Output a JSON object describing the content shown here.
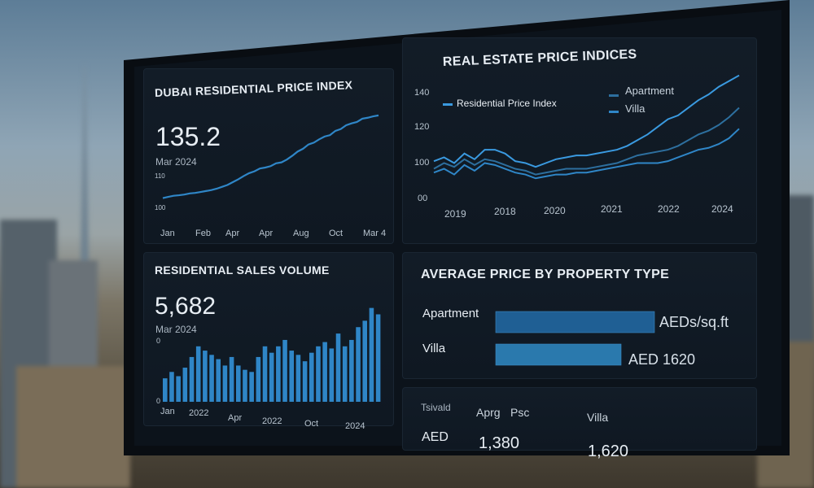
{
  "panels": {
    "price_index": {
      "title": "DUBAI RESIDENTIAL PRICE INDEX",
      "value": "135.2",
      "date": "Mar 2024",
      "y_ticks": [
        "110",
        "100"
      ],
      "x_ticks": [
        "Jan",
        "Feb",
        "Apr",
        "Apr",
        "Aug",
        "Oct",
        "Mar 4"
      ]
    },
    "indices": {
      "title": "REAL ESTATE PRICE INDICES",
      "legend": [
        "Residential Price Index",
        "Apartment",
        "Villa"
      ],
      "y_ticks": [
        "140",
        "120",
        "100",
        "00"
      ],
      "x_ticks": [
        "2019",
        "2018",
        "2020",
        "2021",
        "2022",
        "2024"
      ]
    },
    "sales": {
      "title": "RESIDENTIAL SALES VOLUME",
      "value": "5,682",
      "date": "Mar 2024",
      "y_ticks": [
        "0",
        "0"
      ],
      "x_ticks": [
        "Jan",
        "2022",
        "Apr",
        "2022",
        "Oct",
        "2024"
      ]
    },
    "avg_price": {
      "title": "AVERAGE PRICE BY PROPERTY TYPE",
      "rows": [
        {
          "label": "Apartment",
          "value_text": "AEDs/sq.ft"
        },
        {
          "label": "Villa",
          "value_text": "AED 1620"
        }
      ]
    },
    "table": {
      "headers": [
        "Tsivald",
        "Aprg",
        "Psc",
        "Villa"
      ],
      "row": [
        "AED",
        "1,380",
        "1,620"
      ]
    }
  },
  "chart_data": [
    {
      "type": "line",
      "title": "DUBAI RESIDENTIAL PRICE INDEX",
      "x": [
        0,
        1,
        2,
        3,
        4,
        5,
        6,
        7,
        8,
        9,
        10,
        11,
        12,
        13,
        14,
        15,
        16,
        17,
        18,
        19,
        20,
        21,
        22,
        23,
        24,
        25,
        26,
        27,
        28,
        29,
        30,
        31,
        32,
        33,
        34,
        35,
        36,
        37,
        38,
        39,
        40
      ],
      "series": [
        {
          "values": [
            100,
            100.5,
            101,
            101.2,
            101.5,
            102,
            102.2,
            102.6,
            103,
            103.4,
            104,
            104.8,
            105.6,
            106.8,
            108,
            109.4,
            110.6,
            111.4,
            112.6,
            113,
            113.6,
            114.8,
            115.2,
            116.4,
            118,
            119.8,
            121,
            122.8,
            123.6,
            125,
            126.2,
            126.8,
            128.6,
            129.4,
            131,
            131.8,
            132.4,
            133.8,
            134.2,
            134.8,
            135.2
          ]
        }
      ],
      "color": "#2f86c7"
    },
    {
      "type": "line",
      "title": "REAL ESTATE PRICE INDICES",
      "x_ticks": [
        "2019",
        "2018",
        "2020",
        "2021",
        "2022",
        "2024"
      ],
      "series": [
        {
          "name": "Residential Price Index",
          "values": [
            105,
            107,
            104,
            109,
            106,
            111,
            111,
            109,
            105,
            104,
            102,
            104,
            106,
            107,
            108,
            108,
            109,
            110,
            111,
            113,
            116,
            119,
            123,
            127,
            129,
            133,
            137,
            140,
            144,
            147,
            150
          ]
        },
        {
          "name": "Apartment",
          "values": [
            101,
            104,
            102,
            106,
            103,
            106,
            105,
            103,
            101,
            100,
            98,
            99,
            100,
            101,
            101,
            101,
            102,
            103,
            104,
            106,
            108,
            109,
            110,
            111,
            113,
            116,
            119,
            121,
            124,
            128,
            133
          ]
        },
        {
          "name": "Villa",
          "values": [
            99,
            101,
            98,
            103,
            100,
            104,
            103,
            101,
            99,
            98,
            96,
            97,
            98,
            98,
            99,
            99,
            100,
            101,
            102,
            103,
            104,
            104,
            104,
            105,
            107,
            109,
            111,
            112,
            114,
            117,
            122
          ]
        }
      ],
      "colors": [
        "#3a9ae0",
        "#2d6f9e",
        "#2f86c7"
      ]
    },
    {
      "type": "bar",
      "title": "RESIDENTIAL SALES VOLUME",
      "values": [
        22,
        28,
        24,
        32,
        42,
        52,
        48,
        44,
        40,
        34,
        42,
        34,
        30,
        28,
        42,
        52,
        46,
        52,
        58,
        48,
        44,
        38,
        46,
        52,
        56,
        50,
        64,
        52,
        58,
        70,
        76,
        88,
        82
      ],
      "color": "#2f86c7"
    },
    {
      "type": "bar",
      "title": "AVERAGE PRICE BY PROPERTY TYPE",
      "categories": [
        "Apartment",
        "Villa"
      ],
      "values": [
        1380,
        1620
      ],
      "colors": [
        "#1f5f94",
        "#2a79ad"
      ]
    }
  ]
}
